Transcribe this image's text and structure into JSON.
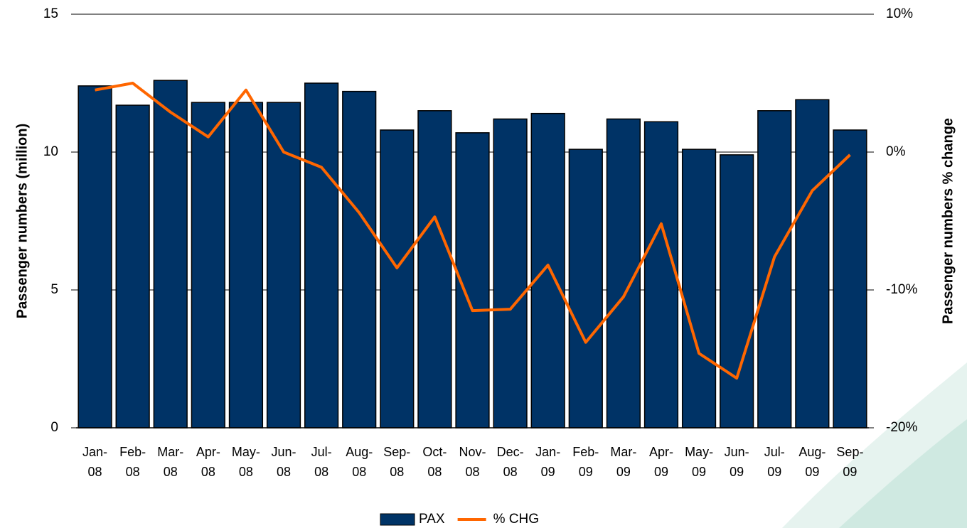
{
  "chart_data": {
    "type": "bar-line",
    "categories": [
      "Jan- 08",
      "Feb- 08",
      "Mar- 08",
      "Apr- 08",
      "May- 08",
      "Jun- 08",
      "Jul- 08",
      "Aug- 08",
      "Sep- 08",
      "Oct- 08",
      "Nov- 08",
      "Dec- 08",
      "Jan- 09",
      "Feb- 09",
      "Mar- 09",
      "Apr- 09",
      "May- 09",
      "Jun- 09",
      "Jul- 09",
      "Aug- 09",
      "Sep- 09"
    ],
    "series": [
      {
        "name": "PAX",
        "type": "bar",
        "color": "#003366",
        "values": [
          12.4,
          11.7,
          12.6,
          11.8,
          11.8,
          11.8,
          12.5,
          12.2,
          10.8,
          11.5,
          10.7,
          11.2,
          11.4,
          10.1,
          11.2,
          11.1,
          10.1,
          9.9,
          11.5,
          11.9,
          10.8
        ]
      },
      {
        "name": "% CHG",
        "type": "line",
        "axis": "y2",
        "color": "#ff6600",
        "values": [
          4.5,
          5.0,
          2.9,
          1.1,
          4.5,
          0.0,
          -1.1,
          -4.4,
          -8.4,
          -4.7,
          -11.5,
          -11.4,
          -8.2,
          -13.8,
          -10.5,
          -5.2,
          -14.6,
          -16.4,
          -7.6,
          -2.8,
          -0.2
        ]
      }
    ],
    "y_label": "Passenger numbers (million)",
    "y2_label": "Passenger numbers % change",
    "ylim": [
      0,
      15
    ],
    "yticks": [
      0,
      5,
      10,
      15
    ],
    "y2lim": [
      -20,
      10
    ],
    "y2ticks": [
      {
        "value": -20,
        "label": "-20%"
      },
      {
        "value": -10,
        "label": "-10%"
      },
      {
        "value": 0,
        "label": "0%"
      },
      {
        "value": 10,
        "label": "10%"
      }
    ],
    "grid": true,
    "legend": "bottom"
  }
}
